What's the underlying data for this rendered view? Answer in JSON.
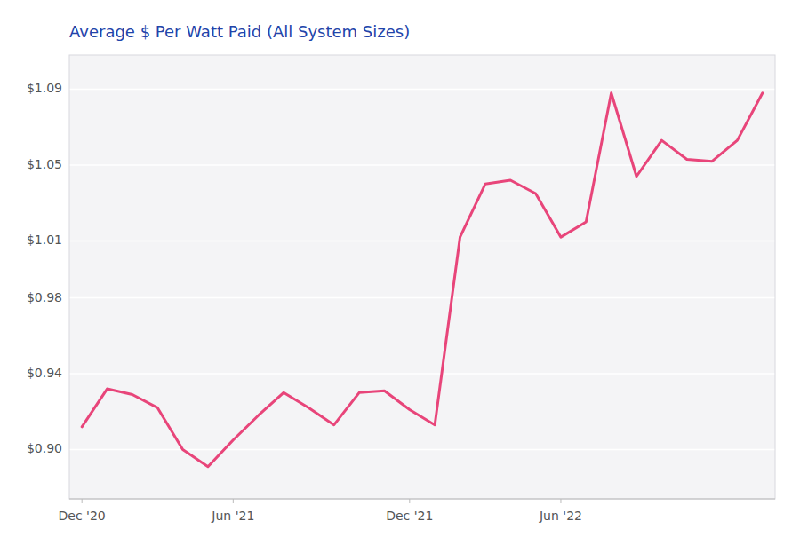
{
  "chart_data": {
    "type": "line",
    "title": "Average $ Per Watt Paid (All System Sizes)",
    "x": [
      0,
      1,
      2,
      3,
      4,
      5,
      6,
      7,
      8,
      9,
      10,
      11,
      12,
      13,
      14,
      15,
      16,
      17,
      18,
      19,
      20,
      21,
      22,
      23,
      24,
      25,
      26,
      27
    ],
    "values": [
      0.912,
      0.932,
      0.929,
      0.922,
      0.9,
      0.891,
      0.905,
      0.918,
      0.93,
      0.922,
      0.913,
      0.93,
      0.931,
      0.921,
      0.913,
      1.012,
      1.04,
      1.042,
      1.035,
      1.012,
      1.02,
      1.088,
      1.044,
      1.063,
      1.053,
      1.052,
      1.063,
      1.088
    ],
    "color": "#e8457a",
    "xlim": [
      -0.5,
      27.5
    ],
    "xticks": [
      {
        "value": 0,
        "label": "Dec '20"
      },
      {
        "value": 6,
        "label": "Jun '21"
      },
      {
        "value": 13,
        "label": "Dec '21"
      },
      {
        "value": 19,
        "label": "Jun '22"
      }
    ],
    "ylim": [
      0.874,
      1.108
    ],
    "yticks": [
      {
        "value": 0.9,
        "label": "$0.90"
      },
      {
        "value": 0.94,
        "label": "$0.94"
      },
      {
        "value": 0.98,
        "label": "$0.98"
      },
      {
        "value": 1.01,
        "label": "$1.01"
      },
      {
        "value": 1.05,
        "label": "$1.05"
      },
      {
        "value": 1.09,
        "label": "$1.09"
      }
    ],
    "grid": true
  }
}
